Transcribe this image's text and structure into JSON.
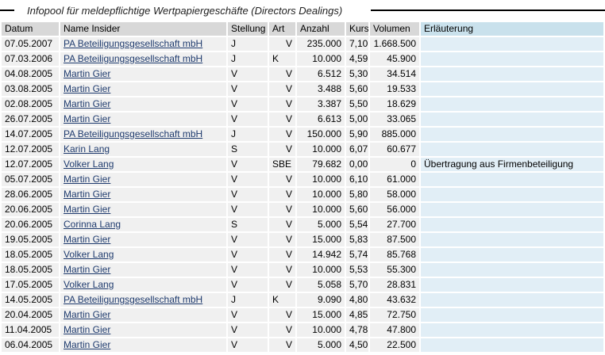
{
  "page": {
    "title": "Infopool für meldepflichtige Wertpapiergeschäfte (Directors Dealings)"
  },
  "colors": {
    "header_bg": "#d8d8d8",
    "header_note_bg": "#c9e1ec",
    "row_bg": "#f0f0f0",
    "note_bg": "#e1eef6",
    "link": "#1f3b6e",
    "rule": "#000000"
  },
  "table": {
    "columns": [
      {
        "key": "datum",
        "label": "Datum"
      },
      {
        "key": "name",
        "label": "Name Insider"
      },
      {
        "key": "stellung",
        "label": "Stellung"
      },
      {
        "key": "art",
        "label": "Art"
      },
      {
        "key": "anzahl",
        "label": "Anzahl"
      },
      {
        "key": "kurs",
        "label": "Kurs"
      },
      {
        "key": "volumen",
        "label": "Volumen"
      },
      {
        "key": "erlaeuterung",
        "label": "Erläuterung"
      }
    ],
    "rows": [
      {
        "datum": "07.05.2007",
        "name": "PA Beteiligungsgesellschaft mbH",
        "stellung": "J",
        "art": "V",
        "anzahl": "235.000",
        "kurs": "7,10",
        "volumen": "1.668.500",
        "erlaeuterung": ""
      },
      {
        "datum": "07.03.2006",
        "name": "PA Beteiligungsgesellschaft mbH",
        "stellung": "J",
        "art": "K",
        "anzahl": "10.000",
        "kurs": "4,59",
        "volumen": "45.900",
        "erlaeuterung": ""
      },
      {
        "datum": "04.08.2005",
        "name": "Martin Gier",
        "stellung": "V",
        "art": "V",
        "anzahl": "6.512",
        "kurs": "5,30",
        "volumen": "34.514",
        "erlaeuterung": ""
      },
      {
        "datum": "03.08.2005",
        "name": "Martin Gier",
        "stellung": "V",
        "art": "V",
        "anzahl": "3.488",
        "kurs": "5,60",
        "volumen": "19.533",
        "erlaeuterung": ""
      },
      {
        "datum": "02.08.2005",
        "name": "Martin Gier",
        "stellung": "V",
        "art": "V",
        "anzahl": "3.387",
        "kurs": "5,50",
        "volumen": "18.629",
        "erlaeuterung": ""
      },
      {
        "datum": "26.07.2005",
        "name": "Martin Gier",
        "stellung": "V",
        "art": "V",
        "anzahl": "6.613",
        "kurs": "5,00",
        "volumen": "33.065",
        "erlaeuterung": ""
      },
      {
        "datum": "14.07.2005",
        "name": "PA Beteiligungsgesellschaft mbH",
        "stellung": "J",
        "art": "V",
        "anzahl": "150.000",
        "kurs": "5,90",
        "volumen": "885.000",
        "erlaeuterung": ""
      },
      {
        "datum": "12.07.2005",
        "name": "Karin Lang",
        "stellung": "S",
        "art": "V",
        "anzahl": "10.000",
        "kurs": "6,07",
        "volumen": "60.677",
        "erlaeuterung": ""
      },
      {
        "datum": "12.07.2005",
        "name": "Volker Lang",
        "stellung": "V",
        "art": "SBE",
        "anzahl": "79.682",
        "kurs": "0,00",
        "volumen": "0",
        "erlaeuterung": "Übertragung aus Firmenbeteiligung"
      },
      {
        "datum": "05.07.2005",
        "name": "Martin Gier",
        "stellung": "V",
        "art": "V",
        "anzahl": "10.000",
        "kurs": "6,10",
        "volumen": "61.000",
        "erlaeuterung": ""
      },
      {
        "datum": "28.06.2005",
        "name": "Martin Gier",
        "stellung": "V",
        "art": "V",
        "anzahl": "10.000",
        "kurs": "5,80",
        "volumen": "58.000",
        "erlaeuterung": ""
      },
      {
        "datum": "20.06.2005",
        "name": "Martin Gier",
        "stellung": "V",
        "art": "V",
        "anzahl": "10.000",
        "kurs": "5,60",
        "volumen": "56.000",
        "erlaeuterung": ""
      },
      {
        "datum": "20.06.2005",
        "name": "Corinna Lang",
        "stellung": "S",
        "art": "V",
        "anzahl": "5.000",
        "kurs": "5,54",
        "volumen": "27.700",
        "erlaeuterung": ""
      },
      {
        "datum": "19.05.2005",
        "name": "Martin Gier",
        "stellung": "V",
        "art": "V",
        "anzahl": "15.000",
        "kurs": "5,83",
        "volumen": "87.500",
        "erlaeuterung": ""
      },
      {
        "datum": "18.05.2005",
        "name": "Volker Lang",
        "stellung": "V",
        "art": "V",
        "anzahl": "14.942",
        "kurs": "5,74",
        "volumen": "85.768",
        "erlaeuterung": ""
      },
      {
        "datum": "18.05.2005",
        "name": "Martin Gier",
        "stellung": "V",
        "art": "V",
        "anzahl": "10.000",
        "kurs": "5,53",
        "volumen": "55.300",
        "erlaeuterung": ""
      },
      {
        "datum": "17.05.2005",
        "name": "Volker Lang",
        "stellung": "V",
        "art": "V",
        "anzahl": "5.058",
        "kurs": "5,70",
        "volumen": "28.831",
        "erlaeuterung": ""
      },
      {
        "datum": "14.05.2005",
        "name": "PA Beteiligungsgesellschaft mbH",
        "stellung": "J",
        "art": "K",
        "anzahl": "9.090",
        "kurs": "4,80",
        "volumen": "43.632",
        "erlaeuterung": ""
      },
      {
        "datum": "20.04.2005",
        "name": "Martin Gier",
        "stellung": "V",
        "art": "V",
        "anzahl": "15.000",
        "kurs": "4,85",
        "volumen": "72.750",
        "erlaeuterung": ""
      },
      {
        "datum": "11.04.2005",
        "name": "Martin Gier",
        "stellung": "V",
        "art": "V",
        "anzahl": "10.000",
        "kurs": "4,78",
        "volumen": "47.800",
        "erlaeuterung": ""
      },
      {
        "datum": "06.04.2005",
        "name": "Martin Gier",
        "stellung": "V",
        "art": "V",
        "anzahl": "5.000",
        "kurs": "4,50",
        "volumen": "22.500",
        "erlaeuterung": ""
      }
    ]
  }
}
